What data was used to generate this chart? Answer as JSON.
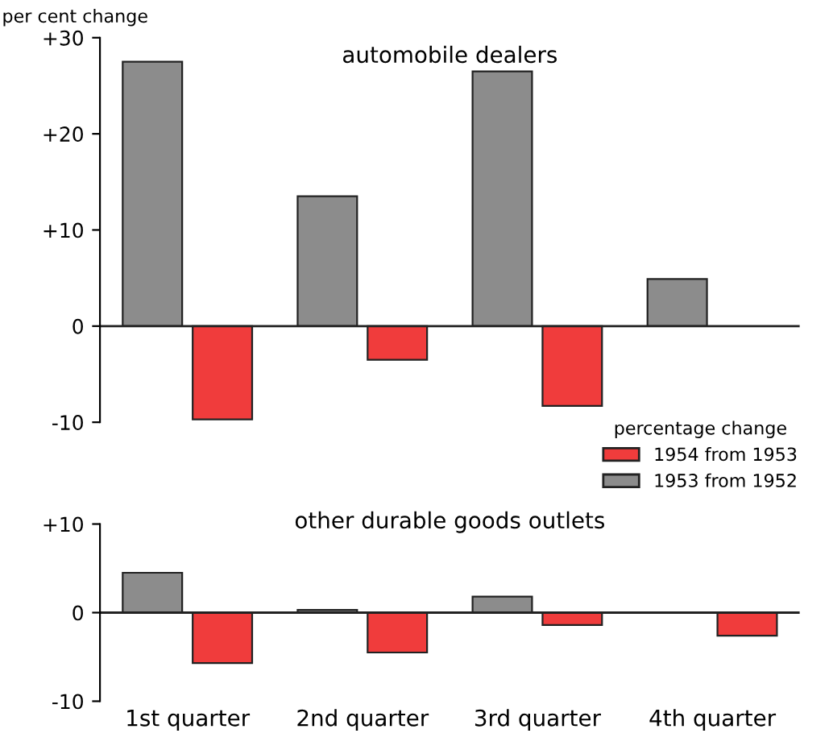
{
  "chart_data": [
    {
      "type": "bar",
      "title": "automobile dealers",
      "ylabel": "per cent change",
      "legend_title": "percentage change",
      "legend": "bottom right",
      "tick_labels": "y",
      "categories": [
        null,
        null,
        null,
        null
      ],
      "ylim": [
        -10,
        30
      ],
      "yticks": [
        {
          "value": -10,
          "label": "-10"
        },
        0,
        {
          "value": 10,
          "label": "+10"
        },
        {
          "value": 20,
          "label": "+20"
        },
        {
          "value": 30,
          "label": "+30"
        }
      ],
      "series": [
        {
          "name": "1953 from 1952",
          "color": "#8c8c8c",
          "values": [
            27.5,
            13.5,
            26.5,
            4.9
          ]
        },
        {
          "name": "1954 from 1953",
          "color": "#f03c3c",
          "values": [
            -9.7,
            -3.5,
            -8.3,
            null
          ]
        }
      ]
    },
    {
      "type": "bar",
      "title": "other durable goods outlets",
      "categories": [
        "1st quarter",
        "2nd quarter",
        "3rd quarter",
        "4th quarter"
      ],
      "ylim": [
        -10,
        10
      ],
      "yticks": [
        {
          "value": -10,
          "label": "-10"
        },
        0,
        {
          "value": 10,
          "label": "+10"
        }
      ],
      "series": [
        {
          "color": "#8c8c8c",
          "values": [
            4.5,
            0.3,
            1.8,
            null
          ]
        },
        {
          "color": "#f03c3c",
          "values": [
            -5.7,
            -4.5,
            -1.4,
            -2.6
          ]
        }
      ]
    }
  ]
}
